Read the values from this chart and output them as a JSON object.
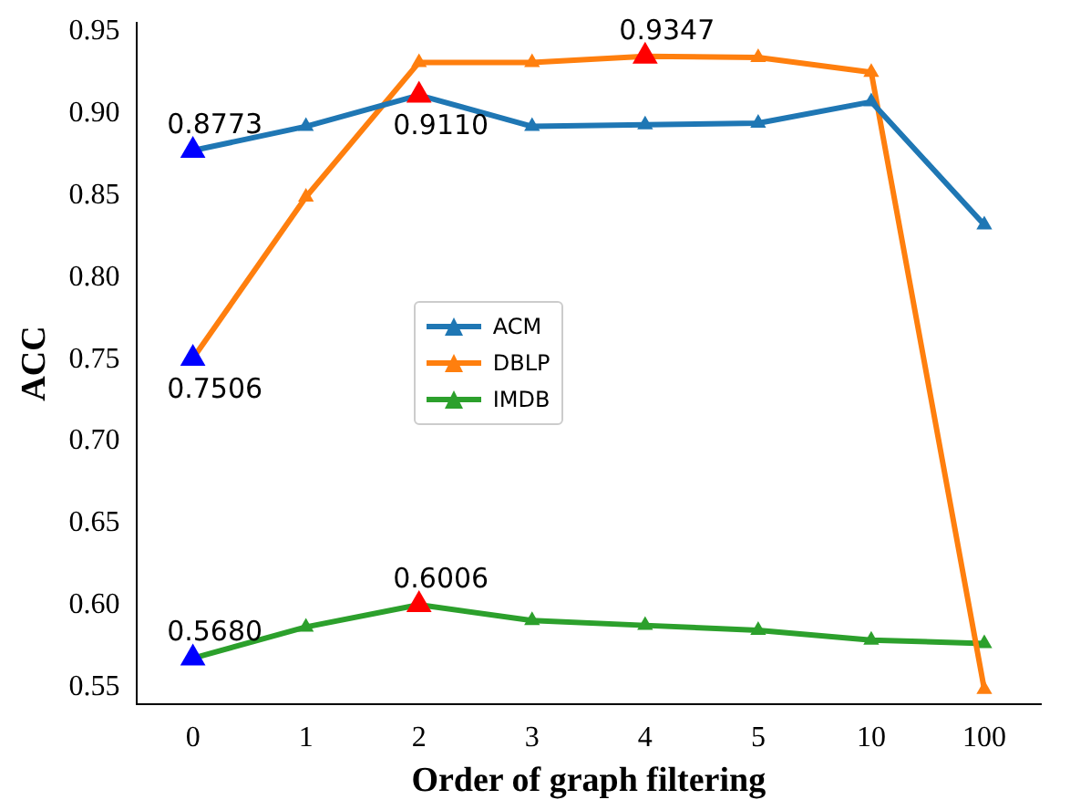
{
  "chart_data": {
    "type": "line",
    "xlabel": "Order of graph filtering",
    "ylabel": "ACC",
    "categories": [
      "0",
      "1",
      "2",
      "3",
      "4",
      "5",
      "10",
      "100"
    ],
    "series": [
      {
        "name": "ACM",
        "color": "#1f77b4",
        "values": [
          0.8773,
          0.892,
          0.911,
          0.892,
          0.893,
          0.894,
          0.907,
          0.832
        ],
        "colors": [
          "#0000ff",
          "#1f77b4",
          "#ff0000",
          "#1f77b4",
          "#1f77b4",
          "#1f77b4",
          "#1f77b4",
          "#1f77b4"
        ],
        "value_labels": [
          "0.8773",
          null,
          "0.9110",
          null,
          null,
          null,
          null,
          null
        ]
      },
      {
        "name": "DBLP",
        "color": "#ff7f0e",
        "values": [
          0.7506,
          0.849,
          0.931,
          0.931,
          0.9347,
          0.934,
          0.925,
          0.549
        ],
        "colors": [
          "#0000ff",
          "#ff7f0e",
          "#ff7f0e",
          "#ff7f0e",
          "#ff0000",
          "#ff7f0e",
          "#ff7f0e",
          "#ff7f0e"
        ],
        "value_labels": [
          "0.7506",
          null,
          null,
          null,
          "0.9347",
          null,
          null,
          null
        ]
      },
      {
        "name": "IMDB",
        "color": "#2ca02c",
        "values": [
          0.568,
          0.587,
          0.6006,
          0.591,
          0.588,
          0.585,
          0.579,
          0.577
        ],
        "colors": [
          "#0000ff",
          "#2ca02c",
          "#ff0000",
          "#2ca02c",
          "#2ca02c",
          "#2ca02c",
          "#2ca02c",
          "#2ca02c"
        ],
        "value_labels": [
          "0.5680",
          null,
          "0.6006",
          null,
          null,
          null,
          null,
          null
        ]
      }
    ],
    "ylim": [
      0.54,
      0.955
    ],
    "yticks": [
      0.55,
      {
        "value": 0.6,
        "label": "0.60"
      },
      0.65,
      {
        "value": 0.7,
        "label": "0.70"
      },
      0.75,
      {
        "value": 0.8,
        "label": "0.80"
      },
      0.85,
      {
        "value": 0.9,
        "label": "0.90"
      },
      0.95
    ],
    "grid": false,
    "legend": "center",
    "marker": "triangle",
    "line_style": "solid"
  }
}
